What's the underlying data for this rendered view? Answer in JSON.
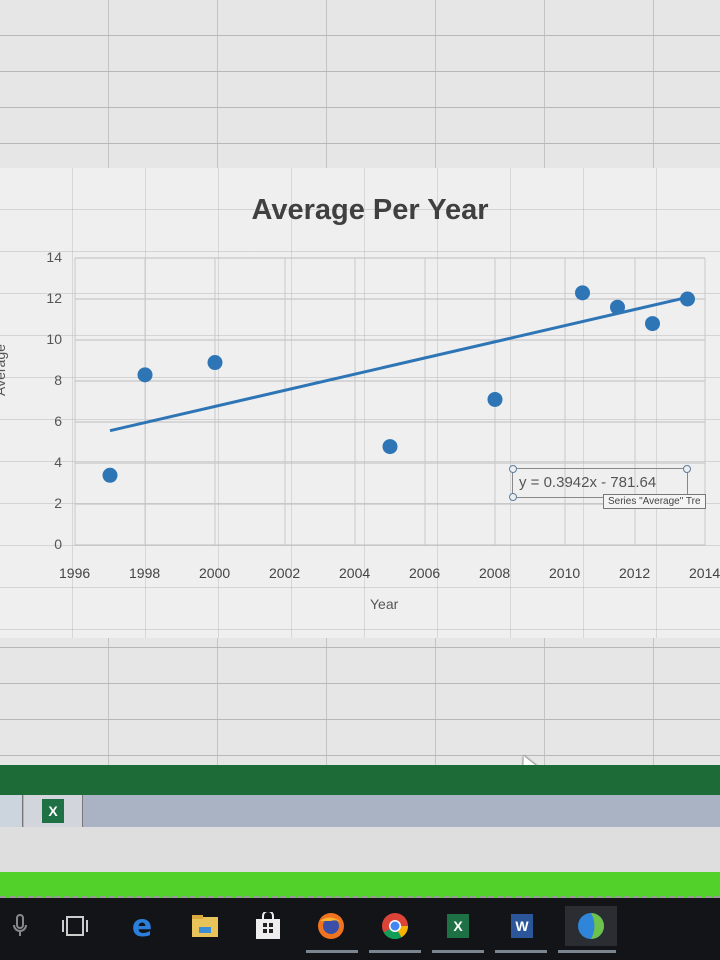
{
  "app": {
    "name": "Microsoft Excel"
  },
  "chart_data": {
    "type": "scatter",
    "title": "Average Per Year",
    "xlabel": "Year",
    "ylabel": "Average",
    "xlim": [
      1996,
      2014
    ],
    "ylim": [
      0,
      14
    ],
    "x_ticks": [
      "1996",
      "1998",
      "2000",
      "2002",
      "2004",
      "2006",
      "2008",
      "2010",
      "2012",
      "2014"
    ],
    "y_ticks": [
      "0",
      "2",
      "4",
      "6",
      "8",
      "10",
      "12",
      "14"
    ],
    "grid": true,
    "legend": null,
    "series": [
      {
        "name": "Average",
        "x": [
          1997,
          1998,
          2000,
          2005,
          2008,
          2010.5,
          2011.5,
          2012.5,
          2013.5
        ],
        "y": [
          3.4,
          8.3,
          8.9,
          4.8,
          7.1,
          12.3,
          11.6,
          10.8,
          12.0
        ],
        "color": "#2e75b6"
      }
    ],
    "trendline": {
      "type": "linear",
      "equation": "y = 0.3942x - 781.64",
      "x_start": 1997,
      "x_end": 2013.5,
      "color": "#2e75b6"
    }
  },
  "chart": {
    "title": "Average Per Year",
    "x_axis_title": "Year",
    "y_axis_title": "Average",
    "trendline_label": "y = 0.3942x - 781.64",
    "tooltip": "Series \"Average\" Tre"
  },
  "taskbar": {
    "items": [
      {
        "name": "cortana-mic",
        "glyph": "🎙"
      },
      {
        "name": "task-view",
        "glyph": "▭"
      },
      {
        "name": "edge",
        "glyph": "e"
      },
      {
        "name": "file-explorer",
        "glyph": "▬"
      },
      {
        "name": "store",
        "glyph": "⊞"
      },
      {
        "name": "firefox",
        "glyph": ""
      },
      {
        "name": "chrome",
        "glyph": ""
      },
      {
        "name": "excel",
        "glyph": "X"
      },
      {
        "name": "word",
        "glyph": "W"
      },
      {
        "name": "globe-app",
        "glyph": ""
      }
    ]
  },
  "sheet_tabs": {
    "excel_tab_glyph": "X"
  },
  "colors": {
    "accent": "#2e75b6",
    "excel_green": "#1d6b36",
    "lime": "#52d12a"
  }
}
